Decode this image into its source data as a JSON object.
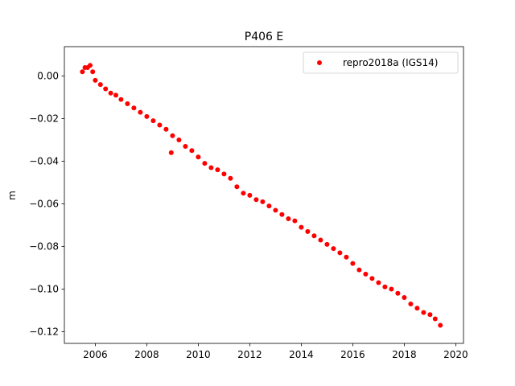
{
  "chart_data": {
    "type": "scatter",
    "title": "P406 E",
    "xlabel": "",
    "ylabel": "m",
    "xlim": [
      2004.8,
      2020.3
    ],
    "ylim": [
      -0.1255,
      0.0138
    ],
    "xticks": [
      2006,
      2008,
      2010,
      2012,
      2014,
      2016,
      2018,
      2020
    ],
    "xtick_labels": [
      "2006",
      "2008",
      "2010",
      "2012",
      "2014",
      "2016",
      "2018",
      "2020"
    ],
    "yticks": [
      0.0,
      -0.02,
      -0.04,
      -0.06,
      -0.08,
      -0.1,
      -0.12
    ],
    "ytick_labels": [
      "0.00",
      "−0.02",
      "−0.04",
      "−0.06",
      "−0.08",
      "−0.10",
      "−0.12"
    ],
    "grid": false,
    "legend_position": "top-right",
    "series": [
      {
        "name": "repro2018a (IGS14)",
        "color": "#ff0000",
        "marker": "circle",
        "x": [
          2005.5,
          2005.6,
          2005.7,
          2005.8,
          2005.9,
          2006.0,
          2006.2,
          2006.4,
          2006.6,
          2006.8,
          2007.0,
          2007.25,
          2007.5,
          2007.75,
          2008.0,
          2008.25,
          2008.5,
          2008.75,
          2009.0,
          2009.25,
          2009.5,
          2009.75,
          2010.0,
          2010.25,
          2010.5,
          2010.75,
          2011.0,
          2011.25,
          2011.5,
          2011.75,
          2012.0,
          2012.25,
          2012.5,
          2012.75,
          2013.0,
          2013.25,
          2013.5,
          2013.75,
          2014.0,
          2014.25,
          2014.5,
          2014.75,
          2015.0,
          2015.25,
          2015.5,
          2015.75,
          2016.0,
          2016.25,
          2016.5,
          2016.75,
          2017.0,
          2017.25,
          2017.5,
          2017.75,
          2018.0,
          2018.25,
          2018.5,
          2018.75,
          2019.0,
          2019.2,
          2019.4
        ],
        "y": [
          0.002,
          0.004,
          0.004,
          0.005,
          0.002,
          -0.002,
          -0.004,
          -0.006,
          -0.008,
          -0.009,
          -0.011,
          -0.013,
          -0.015,
          -0.017,
          -0.019,
          -0.021,
          -0.023,
          -0.025,
          -0.028,
          -0.03,
          -0.033,
          -0.035,
          -0.038,
          -0.041,
          -0.043,
          -0.044,
          -0.046,
          -0.048,
          -0.052,
          -0.055,
          -0.056,
          -0.058,
          -0.059,
          -0.061,
          -0.063,
          -0.065,
          -0.067,
          -0.068,
          -0.071,
          -0.073,
          -0.075,
          -0.077,
          -0.079,
          -0.081,
          -0.083,
          -0.085,
          -0.088,
          -0.091,
          -0.093,
          -0.095,
          -0.097,
          -0.099,
          -0.1,
          -0.102,
          -0.104,
          -0.107,
          -0.109,
          -0.111,
          -0.112,
          -0.114,
          -0.117
        ]
      },
      {
        "name": "",
        "color": "#ff0000",
        "marker": "circle",
        "x": [
          2008.95
        ],
        "y": [
          -0.036
        ]
      }
    ]
  }
}
